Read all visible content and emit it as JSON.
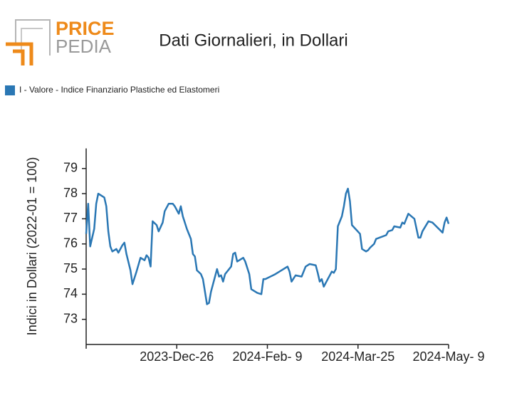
{
  "logo": {
    "price": "PRICE",
    "pedia": "PEDIA"
  },
  "chart_data": {
    "type": "line",
    "title": "Dati Giornalieri, in Dollari",
    "y_label": "Indici in Dollari (2022-01 = 100)",
    "legend_position": "top-left",
    "grid": false,
    "xlim": [
      "2023-11-11",
      "2024-05-09"
    ],
    "xticks": [
      {
        "value": "2023-12-26",
        "label": "2023-Dec-26"
      },
      {
        "value": "2024-02-09",
        "label": "2024-Feb- 9"
      },
      {
        "value": "2024-03-25",
        "label": "2024-Mar-25"
      },
      {
        "value": "2024-05-09",
        "label": "2024-May- 9"
      }
    ],
    "ylim": [
      72,
      79.8
    ],
    "yticks": [
      73,
      74,
      75,
      76,
      77,
      78,
      79
    ],
    "x": [
      "2023-11-11",
      "2023-11-12",
      "2023-11-13",
      "2023-11-15",
      "2023-11-16",
      "2023-11-17",
      "2023-11-20",
      "2023-11-21",
      "2023-11-22",
      "2023-11-23",
      "2023-11-24",
      "2023-11-26",
      "2023-11-27",
      "2023-11-29",
      "2023-11-30",
      "2023-12-01",
      "2023-12-03",
      "2023-12-04",
      "2023-12-06",
      "2023-12-08",
      "2023-12-10",
      "2023-12-11",
      "2023-12-12",
      "2023-12-13",
      "2023-12-14",
      "2023-12-16",
      "2023-12-17",
      "2023-12-19",
      "2023-12-20",
      "2023-12-22",
      "2023-12-24",
      "2023-12-25",
      "2023-12-27",
      "2023-12-28",
      "2023-12-29",
      "2023-12-31",
      "2024-01-02",
      "2024-01-03",
      "2024-01-04",
      "2024-01-05",
      "2024-01-07",
      "2024-01-08",
      "2024-01-10",
      "2024-01-11",
      "2024-01-12",
      "2024-01-15",
      "2024-01-16",
      "2024-01-17",
      "2024-01-18",
      "2024-01-19",
      "2024-01-22",
      "2024-01-23",
      "2024-01-24",
      "2024-01-25",
      "2024-01-28",
      "2024-01-29",
      "2024-01-31",
      "2024-02-01",
      "2024-02-04",
      "2024-02-06",
      "2024-02-07",
      "2024-02-08",
      "2024-02-13",
      "2024-02-19",
      "2024-02-20",
      "2024-02-21",
      "2024-02-23",
      "2024-02-26",
      "2024-02-28",
      "2024-03-01",
      "2024-03-04",
      "2024-03-05",
      "2024-03-06",
      "2024-03-07",
      "2024-03-08",
      "2024-03-09",
      "2024-03-12",
      "2024-03-13",
      "2024-03-14",
      "2024-03-15",
      "2024-03-17",
      "2024-03-18",
      "2024-03-19",
      "2024-03-20",
      "2024-03-21",
      "2024-03-22",
      "2024-03-26",
      "2024-03-27",
      "2024-03-29",
      "2024-03-30",
      "2024-03-31",
      "2024-04-02",
      "2024-04-03",
      "2024-04-08",
      "2024-04-09",
      "2024-04-11",
      "2024-04-12",
      "2024-04-15",
      "2024-04-16",
      "2024-04-17",
      "2024-04-19",
      "2024-04-22",
      "2024-04-24",
      "2024-04-25",
      "2024-04-26",
      "2024-04-29",
      "2024-05-01",
      "2024-05-06",
      "2024-05-07",
      "2024-05-08",
      "2024-05-09"
    ],
    "series": [
      {
        "name": "I - Valore - Indice Finanziario Plastiche ed Elastomeri",
        "color": "#2a77b4",
        "values": [
          76.4,
          77.6,
          75.9,
          76.6,
          77.6,
          78.0,
          77.85,
          77.5,
          76.5,
          75.9,
          75.7,
          75.8,
          75.65,
          75.95,
          76.05,
          75.6,
          74.95,
          74.4,
          74.9,
          75.45,
          75.35,
          75.55,
          75.45,
          75.1,
          76.9,
          76.75,
          76.5,
          76.85,
          77.3,
          77.6,
          77.6,
          77.5,
          77.2,
          77.5,
          77.1,
          76.6,
          76.2,
          75.6,
          75.5,
          74.95,
          74.8,
          74.6,
          73.6,
          73.65,
          74.1,
          75.0,
          74.7,
          74.75,
          74.5,
          74.8,
          75.1,
          75.6,
          75.65,
          75.3,
          75.45,
          75.3,
          74.8,
          74.2,
          74.05,
          74.0,
          74.6,
          74.6,
          74.8,
          75.1,
          74.9,
          74.5,
          74.75,
          74.7,
          75.1,
          75.2,
          75.15,
          74.85,
          74.5,
          74.6,
          74.3,
          74.45,
          74.9,
          74.85,
          75.0,
          76.7,
          77.1,
          77.5,
          78.0,
          78.2,
          77.7,
          76.75,
          76.4,
          75.8,
          75.7,
          75.75,
          75.85,
          76.0,
          76.2,
          76.35,
          76.5,
          76.55,
          76.7,
          76.65,
          76.85,
          76.8,
          77.2,
          77.0,
          76.25,
          76.25,
          76.5,
          76.9,
          76.85,
          76.45,
          76.85,
          77.05,
          76.8
        ]
      }
    ]
  }
}
